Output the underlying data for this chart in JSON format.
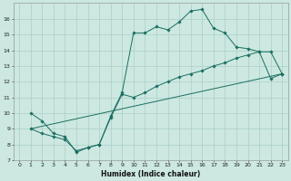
{
  "xlabel": "Humidex (Indice chaleur)",
  "bg_color": "#cce8e0",
  "grid_color": "#aacfc8",
  "line_color": "#1a6e62",
  "xlim": [
    -0.5,
    23.5
  ],
  "ylim": [
    7,
    17
  ],
  "xticks": [
    0,
    1,
    2,
    3,
    4,
    5,
    6,
    7,
    8,
    9,
    10,
    11,
    12,
    13,
    14,
    15,
    16,
    17,
    18,
    19,
    20,
    21,
    22,
    23
  ],
  "yticks": [
    7,
    8,
    9,
    10,
    11,
    12,
    13,
    14,
    15,
    16
  ],
  "curve1_x": [
    1,
    2,
    3,
    4,
    5,
    6,
    7,
    8,
    9,
    10,
    11,
    12,
    13,
    14,
    15,
    16,
    17,
    18,
    19,
    20,
    21,
    22,
    23
  ],
  "curve1_y": [
    10.0,
    9.5,
    8.7,
    8.5,
    7.5,
    7.8,
    8.0,
    9.8,
    11.3,
    15.1,
    15.1,
    15.5,
    15.3,
    15.8,
    16.5,
    16.6,
    15.4,
    15.1,
    14.2,
    14.1,
    13.9,
    13.9,
    12.5
  ],
  "curve2_x": [
    1,
    2,
    3,
    4,
    5,
    6,
    7,
    8,
    9,
    10,
    11,
    12,
    13,
    14,
    15,
    16,
    17,
    18,
    19,
    20,
    21,
    22,
    23
  ],
  "curve2_y": [
    9.0,
    8.7,
    8.5,
    8.3,
    7.6,
    7.8,
    8.0,
    9.7,
    11.2,
    11.0,
    11.3,
    11.7,
    12.0,
    12.3,
    12.5,
    12.7,
    13.0,
    13.2,
    13.5,
    13.7,
    13.9,
    12.2,
    12.5
  ],
  "line_x": [
    1,
    23
  ],
  "line_y": [
    9.0,
    12.5
  ],
  "tick_fontsize": 4.5,
  "xlabel_fontsize": 5.5,
  "marker_size": 1.8,
  "line_width": 0.7
}
